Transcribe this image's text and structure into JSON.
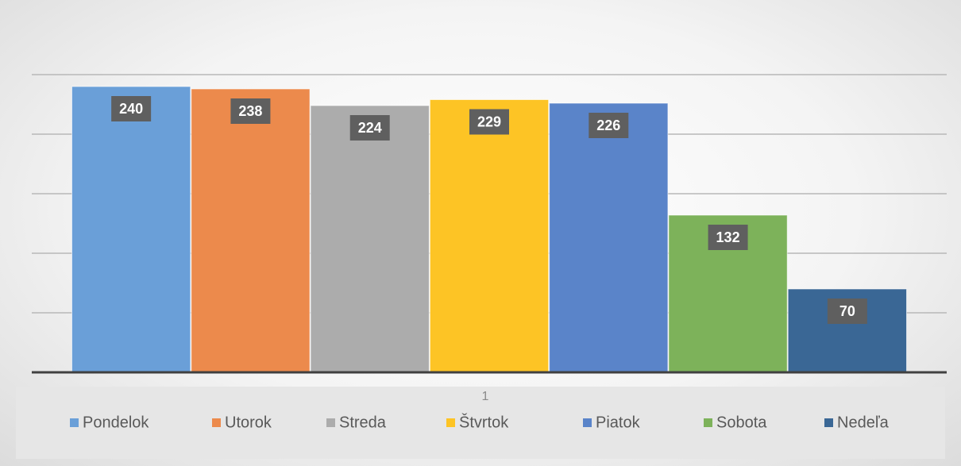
{
  "chart_data": {
    "type": "bar",
    "categories": [
      "1"
    ],
    "series": [
      {
        "name": "Pondelok",
        "color": "#6a9fd8",
        "values": [
          240
        ]
      },
      {
        "name": "Utorok",
        "color": "#ec8a4c",
        "values": [
          238
        ]
      },
      {
        "name": "Streda",
        "color": "#acacac",
        "values": [
          224
        ]
      },
      {
        "name": "Štvrtok",
        "color": "#fdc425",
        "values": [
          229
        ]
      },
      {
        "name": "Piatok",
        "color": "#5a84c9",
        "values": [
          226
        ]
      },
      {
        "name": "Sobota",
        "color": "#7db25a",
        "values": [
          132
        ]
      },
      {
        "name": "Nedeľa",
        "color": "#3a6795",
        "values": [
          70
        ]
      }
    ],
    "ylim": [
      0,
      250
    ],
    "yticks": [
      0,
      50,
      100,
      150,
      200,
      250
    ],
    "grid": true,
    "legend": "bottom"
  }
}
